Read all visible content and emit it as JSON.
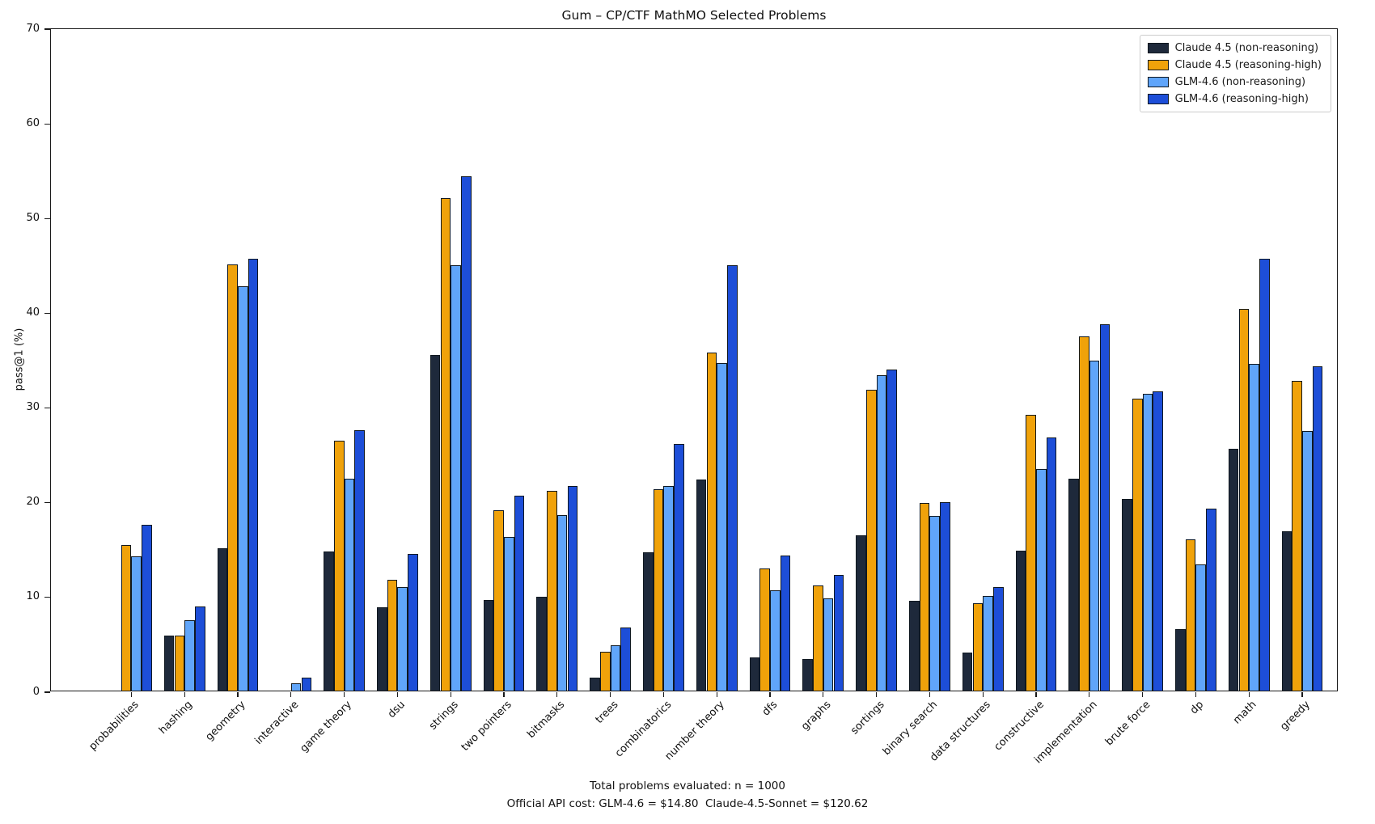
{
  "title": "Gum – CP/CTF MathMO Selected Problems",
  "footer": {
    "line1": "Total problems evaluated: n = 1000",
    "line2": "Official API cost: GLM-4.6 = $14.80  Claude-4.5-Sonnet = $120.62"
  },
  "chart_data": {
    "type": "bar",
    "title": "Gum – CP/CTF MathMO Selected Problems",
    "xlabel": "",
    "ylabel": "pass@1 (%)",
    "ylim": [
      0,
      70
    ],
    "yticks": [
      0,
      10,
      20,
      30,
      40,
      50,
      60,
      70
    ],
    "grid": false,
    "legend_position": "upper right",
    "bar_edge_color": "#101820",
    "categories": [
      "probabilities",
      "hashing",
      "geometry",
      "interactive",
      "game theory",
      "dsu",
      "strings",
      "two pointers",
      "bitmasks",
      "trees",
      "combinatorics",
      "number theory",
      "dfs",
      "graphs",
      "sortings",
      "binary search",
      "data structures",
      "constructive",
      "implementation",
      "brute force",
      "dp",
      "math",
      "greedy"
    ],
    "series": [
      {
        "name": "Claude 4.5 (non-reasoning)",
        "color": "#1e293b",
        "values": [
          0,
          5.8,
          15.0,
          0,
          14.7,
          8.8,
          35.4,
          9.6,
          9.9,
          1.4,
          14.6,
          22.3,
          3.5,
          3.3,
          16.4,
          9.5,
          4.0,
          14.8,
          22.4,
          20.2,
          6.5,
          25.5,
          16.8
        ]
      },
      {
        "name": "Claude 4.5 (reasoning-high)",
        "color": "#f0a20a",
        "values": [
          15.4,
          5.8,
          45.0,
          0,
          26.4,
          11.7,
          52.0,
          19.0,
          21.1,
          4.1,
          21.3,
          35.7,
          12.9,
          11.1,
          31.8,
          19.8,
          9.2,
          29.1,
          37.4,
          30.8,
          16.0,
          40.3,
          32.7
        ]
      },
      {
        "name": "GLM-4.6 (non-reasoning)",
        "color": "#60a5fa",
        "values": [
          14.2,
          7.4,
          42.7,
          0.8,
          22.4,
          10.9,
          44.9,
          16.2,
          18.5,
          4.8,
          21.6,
          34.6,
          10.6,
          9.7,
          33.3,
          18.4,
          10.0,
          23.4,
          34.8,
          31.3,
          13.3,
          34.5,
          27.4
        ]
      },
      {
        "name": "GLM-4.6 (reasoning-high)",
        "color": "#1d4ed8",
        "values": [
          17.5,
          8.9,
          45.6,
          1.4,
          27.5,
          14.4,
          54.3,
          20.6,
          21.6,
          6.7,
          26.0,
          44.9,
          14.3,
          12.2,
          33.9,
          19.9,
          10.9,
          26.7,
          38.7,
          31.6,
          19.2,
          45.6,
          34.2
        ]
      }
    ]
  }
}
